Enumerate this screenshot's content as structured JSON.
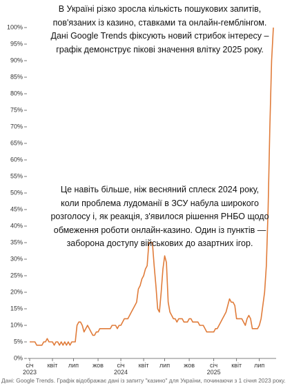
{
  "chart_data": {
    "type": "line",
    "annotations": [
      [
        "В Україні різко зросла кількість пошукових запитів,",
        "пов'язаних із казино, ставками та онлайн-гемблінгом.",
        "Дані Google Trends фіксують новий стрибок інтересу –",
        "графік демонструє пікові значення влітку 2025 року."
      ],
      [
        "Це навіть більше, ніж весняний сплеск 2024 року,",
        "коли проблема лудоманії в ЗСУ набула широкого",
        "розголосу і, як реакція, з'явилося рішення РНБО щодо",
        "обмеження роботи онлайн-казино. Один із пунктів —",
        "заборона доступу військових до азартних ігор."
      ]
    ],
    "source": "Дані: Google Trends. Графік відображає дані із запиту \"казино\" для України, починаючи з 1 січня 2023 року.",
    "categories": [
      "січ\n2023",
      null,
      null,
      null,
      null,
      null,
      null,
      null,
      null,
      null,
      null,
      null,
      null,
      "квіт",
      null,
      null,
      null,
      null,
      null,
      null,
      null,
      null,
      null,
      null,
      null,
      "лип",
      null,
      null,
      null,
      null,
      null,
      null,
      null,
      null,
      null,
      null,
      null,
      null,
      null,
      "жов",
      null,
      null,
      null,
      null,
      null,
      null,
      null,
      null,
      null,
      null,
      null,
      null,
      "січ\n2024",
      null,
      null,
      null,
      null,
      null,
      null,
      null,
      null,
      null,
      null,
      null,
      null,
      "квіт",
      null,
      null,
      null,
      null,
      null,
      null,
      null,
      null,
      null,
      null,
      null,
      "лип",
      null,
      null,
      null,
      null,
      null,
      null,
      null,
      null,
      null,
      null,
      null,
      null,
      null,
      "жов",
      null,
      null,
      null,
      null,
      null,
      null,
      null,
      null,
      null,
      null,
      null,
      null,
      null,
      "січ\n2025",
      null,
      null,
      null,
      null,
      null,
      null,
      null,
      null,
      null,
      null,
      null,
      null,
      "квіт",
      null,
      null,
      null,
      null,
      null,
      null,
      null,
      null,
      null,
      null,
      null,
      null,
      "лип",
      null,
      null,
      null,
      null,
      null,
      null,
      null,
      null
    ],
    "series": [
      {
        "color": "#e07b39",
        "values": [
          5,
          5,
          5,
          5,
          4,
          4,
          4,
          4,
          5,
          5,
          6,
          5,
          5,
          5,
          4,
          5,
          5,
          4,
          5,
          4,
          5,
          4,
          5,
          4,
          5,
          5,
          5,
          10,
          11,
          11,
          10,
          8,
          9,
          10,
          9,
          8,
          7,
          7,
          8,
          8,
          9,
          9,
          9,
          9,
          9,
          9,
          9,
          10,
          10,
          10,
          9,
          10,
          10,
          11,
          12,
          12,
          12,
          13,
          14,
          15,
          16,
          17,
          21,
          22,
          24,
          25,
          27,
          28,
          35,
          35,
          35,
          28,
          22,
          15,
          14,
          20,
          27,
          31,
          29,
          17,
          14,
          13,
          12,
          12,
          11,
          12,
          12,
          12,
          11,
          11,
          11,
          12,
          12,
          11,
          11,
          11,
          11,
          10,
          10,
          10,
          9,
          8,
          8,
          8,
          8,
          8,
          9,
          9,
          10,
          11,
          12,
          13,
          14,
          16,
          18,
          17,
          17,
          16,
          12,
          12,
          12,
          12,
          11,
          10,
          12,
          13,
          12,
          9,
          9,
          9,
          9,
          10,
          12,
          16,
          20,
          28,
          45,
          70,
          90,
          100
        ]
      }
    ],
    "ylim": [
      0,
      100
    ],
    "yticks": [
      {
        "value": 0,
        "label": "0%"
      },
      {
        "value": 5,
        "label": "5%"
      },
      {
        "value": 10,
        "label": "10%"
      },
      {
        "value": 15,
        "label": "15%"
      },
      {
        "value": 20,
        "label": "20%"
      },
      {
        "value": 25,
        "label": "25%"
      },
      {
        "value": 30,
        "label": "30%"
      },
      {
        "value": 35,
        "label": "35%"
      },
      {
        "value": 40,
        "label": "40%"
      },
      {
        "value": 45,
        "label": "45%"
      },
      {
        "value": 50,
        "label": "50%"
      },
      {
        "value": 55,
        "label": "55%"
      },
      {
        "value": 60,
        "label": "60%"
      },
      {
        "value": 65,
        "label": "65%"
      },
      {
        "value": 70,
        "label": "70%"
      },
      {
        "value": 75,
        "label": "75%"
      },
      {
        "value": 80,
        "label": "80%"
      },
      {
        "value": 85,
        "label": "85%"
      },
      {
        "value": 90,
        "label": "90%"
      },
      {
        "value": 95,
        "label": "95%"
      },
      {
        "value": 100,
        "label": "100%"
      }
    ]
  }
}
